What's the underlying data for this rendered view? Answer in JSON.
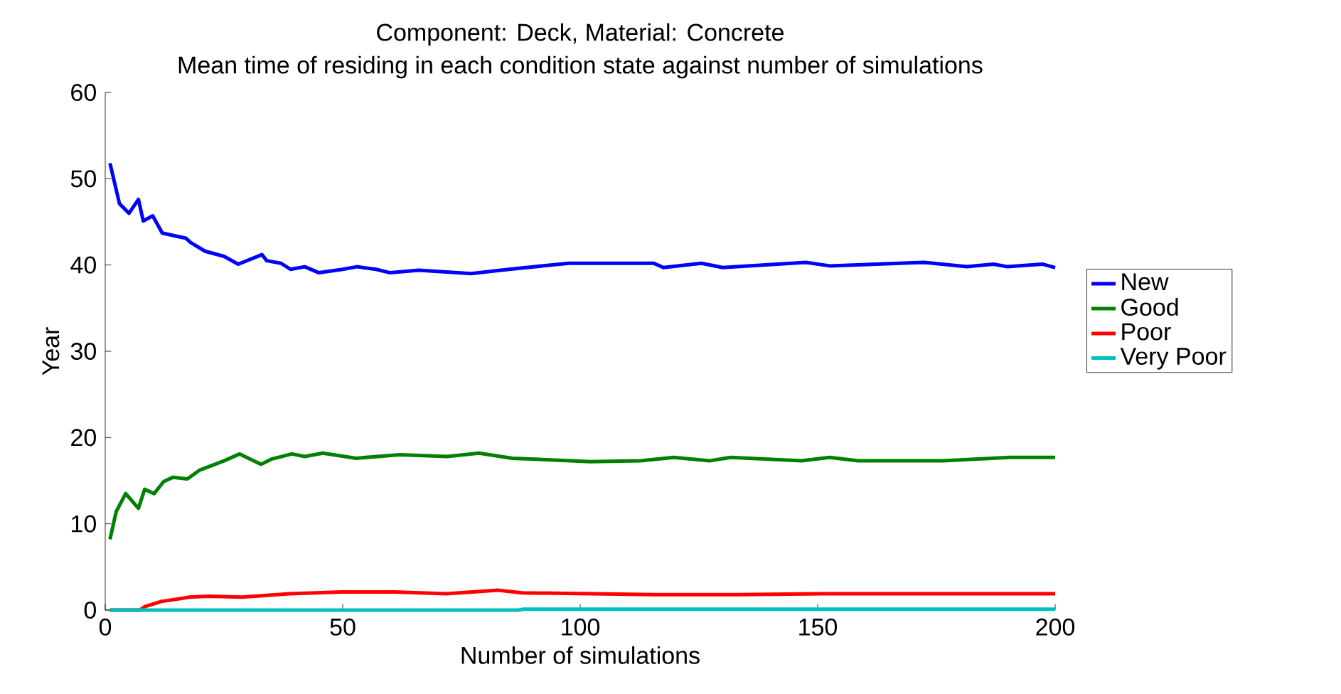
{
  "chart_data": {
    "type": "line",
    "title": "Component: Deck, Material: Concrete",
    "subtitle": "Mean time of residing in each condition state against number of simulations",
    "xlabel": "Number of simulations",
    "ylabel": "Year",
    "xlim": [
      0,
      200
    ],
    "ylim": [
      0,
      60
    ],
    "xticks": [
      0,
      50,
      100,
      150,
      200
    ],
    "yticks": [
      0,
      10,
      20,
      30,
      40,
      50,
      60
    ],
    "legend": "right",
    "grid": false,
    "series": [
      {
        "name": "New",
        "color": "#0000ff",
        "x": [
          1,
          3,
          5,
          7,
          8,
          10,
          12,
          17,
          18,
          21,
          25,
          28,
          33,
          34,
          37,
          39,
          42,
          45,
          50,
          53,
          57,
          60,
          66,
          77,
          85,
          97.6,
          115.5,
          117.5,
          125.5,
          130,
          147.5,
          152.5,
          172.4,
          181.4,
          187,
          190,
          197.3,
          200
        ],
        "values": [
          51.8,
          47.1,
          46,
          47.6,
          45.1,
          45.7,
          43.7,
          43.1,
          42.6,
          41.6,
          41,
          40.1,
          41.2,
          40.5,
          40.2,
          39.5,
          39.8,
          39.1,
          39.5,
          39.8,
          39.5,
          39.1,
          39.4,
          39,
          39.5,
          40.2,
          40.2,
          39.7,
          40.2,
          39.7,
          40.3,
          39.9,
          40.3,
          39.8,
          40.1,
          39.8,
          40.1,
          39.7
        ]
      },
      {
        "name": "Good",
        "color": "#008000",
        "x": [
          1,
          2.3,
          4.3,
          7,
          8.3,
          10.3,
          12.3,
          14.3,
          17.3,
          19.8,
          25,
          28.3,
          32.8,
          35,
          39.3,
          42,
          45.8,
          52.8,
          62,
          72,
          78.7,
          85.7,
          102.2,
          112.7,
          119.7,
          127.2,
          131.7,
          146.6,
          152.5,
          158.5,
          176.4,
          190.4,
          200
        ],
        "values": [
          8.2,
          11.4,
          13.5,
          11.8,
          14,
          13.5,
          14.9,
          15.4,
          15.2,
          16.2,
          17.3,
          18.1,
          16.9,
          17.5,
          18.1,
          17.8,
          18.2,
          17.6,
          18,
          17.8,
          18.2,
          17.6,
          17.2,
          17.3,
          17.7,
          17.3,
          17.7,
          17.3,
          17.7,
          17.3,
          17.3,
          17.7,
          17.7
        ]
      },
      {
        "name": "Poor",
        "color": "#ff0000",
        "x": [
          1,
          7.3,
          8.3,
          11.8,
          17.8,
          21.8,
          28.8,
          38.8,
          49.8,
          60.8,
          71.8,
          82.7,
          87.7,
          115.5,
          133,
          151,
          200
        ],
        "values": [
          0,
          0,
          0.4,
          1,
          1.5,
          1.6,
          1.5,
          1.9,
          2.1,
          2.1,
          1.9,
          2.3,
          2,
          1.8,
          1.8,
          1.9,
          1.9
        ]
      },
      {
        "name": "Very Poor",
        "color": "#00bfbf",
        "x": [
          1,
          87,
          88,
          200
        ],
        "values": [
          0,
          0,
          0.1,
          0.1
        ]
      }
    ]
  }
}
